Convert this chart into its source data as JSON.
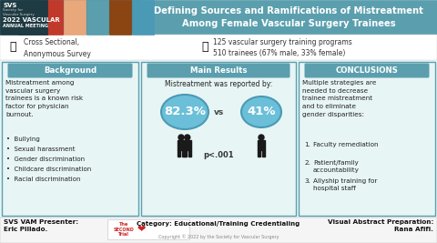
{
  "title": "Defining Sources and Ramifications of Mistreatment\nAmong Female Vascular Surgery Trainees",
  "title_bg": "#5b9fae",
  "title_fg": "#ffffff",
  "banner_left_bg": "#3a7d8c",
  "banner_left_dark": "#1e4a55",
  "header_bg": "#f5f5f5",
  "survey_text": "Cross Sectional,\nAnonymous Survey",
  "sample_text": "125 vascular surgery training programs\n510 trainees (67% male, 33% female)",
  "main_bg": "#e8f5f5",
  "section_header_bg": "#5b9fae",
  "section_header_fg": "#ffffff",
  "panel_bg": "#e8f5f5",
  "panel_border": "#5b9fae",
  "bg_section": "Background",
  "bg_body": "Mistreatment among\nvascular surgery\ntrainees is a known risk\nfactor for physician\nburnout.",
  "bg_bullets": [
    "Bullying",
    "Sexual harassment",
    "Gender discrimination",
    "Childcare discrimination",
    "Racial discrimination"
  ],
  "mr_section": "Main Results",
  "mr_intro": "Mistreatment was reported by:",
  "mr_pct1": "82.3%",
  "mr_pct2": "41%",
  "mr_vs": "vs",
  "mr_p": "p<.001",
  "ellipse_color": "#6bbfd8",
  "ellipse_edge": "#4a9ab5",
  "figure_color": "#1a1a1a",
  "conc_section": "CONCLUSIONS",
  "conc_body": "Multiple strategies are\nneeded to decrease\ntrainee mistreatment\nand to eliminate\ngender disparities:",
  "conc_items": [
    "Faculty remediation",
    "Patient/family\naccountability",
    "Allyship training for\nhospital staff"
  ],
  "footer_presenter": "SVS VAM Presenter:\nEric Pillado.",
  "footer_category": "Category: Educational/Training Credentialing",
  "footer_copyright": "Copyright © 2022 by the Society for Vascular Surgery",
  "footer_prep": "Visual Abstract Preparation:\nRana Afifi.",
  "footer_bg": "#f0f0f0",
  "svs_text": "SVS",
  "svs_sub": "Society for\nVascular Surgery",
  "meeting_line1": "2022 VASCULAR",
  "meeting_line2": "ANNUAL MEETING"
}
